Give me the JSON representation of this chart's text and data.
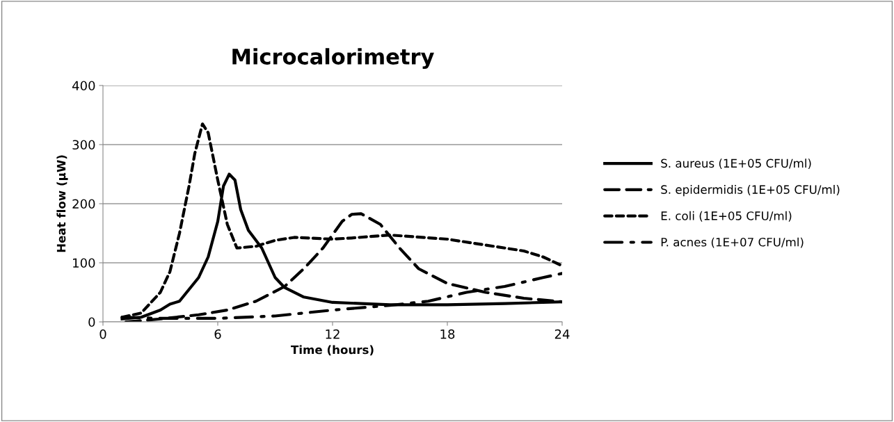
{
  "chart_data": {
    "type": "line",
    "title": "Microcalorimetry",
    "xlabel": "Time (hours)",
    "ylabel": "Heat flow (µW)",
    "xlim": [
      0,
      24
    ],
    "xticks": [
      0,
      6,
      12,
      18,
      24
    ],
    "ylim": [
      0,
      400
    ],
    "yticks": [
      0,
      100,
      200,
      300,
      400
    ],
    "grid": "y",
    "legend": "right",
    "marker": "none",
    "series": [
      {
        "name": "S. aureus (1E+05 CFU/ml)",
        "color": "#000000",
        "line_style": "solid",
        "x": [
          1,
          2,
          3,
          3.5,
          4,
          4.5,
          5,
          5.5,
          6,
          6.3,
          6.6,
          6.9,
          7.2,
          7.6,
          8.3,
          9,
          9.5,
          10.5,
          12,
          15,
          18,
          21,
          24
        ],
        "values": [
          5,
          8,
          20,
          30,
          35,
          55,
          75,
          110,
          170,
          230,
          250,
          240,
          190,
          155,
          125,
          75,
          58,
          42,
          33,
          29,
          29,
          31,
          34
        ]
      },
      {
        "name": "S. epidermidis (1E+05 CFU/ml)",
        "color": "#000000",
        "line_style": "long_dash",
        "x": [
          1.2,
          3,
          5,
          6.5,
          8,
          9.5,
          10.5,
          11.5,
          12.5,
          13,
          13.5,
          14.5,
          15.5,
          16.5,
          18,
          20,
          22,
          24
        ],
        "values": [
          0,
          5,
          12,
          20,
          35,
          60,
          90,
          125,
          170,
          182,
          183,
          165,
          125,
          90,
          65,
          50,
          40,
          34
        ]
      },
      {
        "name": "E. coli (1E+05 CFU/ml)",
        "color": "#000000",
        "line_style": "dashed",
        "x": [
          1,
          2,
          3,
          3.5,
          4,
          4.5,
          4.8,
          5.2,
          5.5,
          6,
          6.5,
          7,
          8,
          9,
          10,
          12,
          13,
          15,
          18,
          20,
          22,
          23,
          24
        ],
        "values": [
          8,
          15,
          50,
          85,
          150,
          230,
          285,
          335,
          320,
          240,
          165,
          125,
          128,
          138,
          143,
          140,
          142,
          147,
          140,
          130,
          120,
          110,
          95
        ]
      },
      {
        "name": "P. acnes (1E+07 CFU/ml)",
        "color": "#000000",
        "line_style": "dash_dot",
        "x": [
          1,
          3,
          6,
          9,
          12,
          15,
          17,
          19,
          21,
          23,
          24
        ],
        "values": [
          8,
          6,
          6,
          10,
          20,
          28,
          35,
          50,
          60,
          75,
          82
        ]
      }
    ]
  }
}
